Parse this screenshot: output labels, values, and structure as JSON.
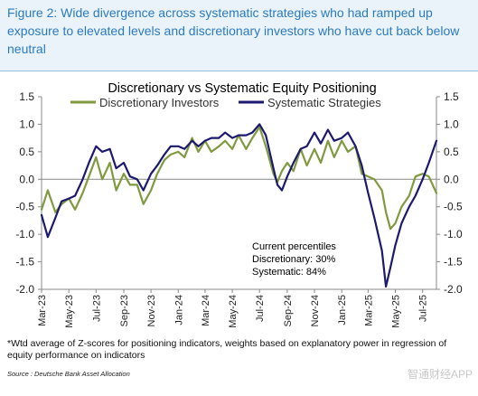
{
  "figure": {
    "title": "Figure 2: Wide divergence across systematic strategies who had ramped up exposure to elevated levels and discretionary investors who have cut back below neutral",
    "footnote": "*Wtd average of Z-scores for positioning indicators, weights based on explanatory power in regression of equity performance on indicators",
    "source": "Source : Deutsche Bank Asset Allocation",
    "watermark": "智通财经APP"
  },
  "chart_data": {
    "type": "line",
    "title": "Discretionary  vs Systematic Equity Positioning",
    "ylim": [
      -2.0,
      1.5
    ],
    "y_ticks": [
      "1.5",
      "1.0",
      "0.5",
      "0.0",
      "-0.5",
      "-1.0",
      "-1.5",
      "-2.0"
    ],
    "y_tick_values": [
      1.5,
      1.0,
      0.5,
      0.0,
      -0.5,
      -1.0,
      -1.5,
      -2.0
    ],
    "x_ticks": [
      "Mar-23",
      "May-23",
      "Jul-23",
      "Sep-23",
      "Nov-23",
      "Jan-24",
      "Mar-24",
      "May-24",
      "Jul-24",
      "Sep-24",
      "Nov-24",
      "Jan-25",
      "Mar-25",
      "May-25",
      "Jul-25"
    ],
    "x_start": "2023-03",
    "x_end": "2025-08",
    "legend_position": "top",
    "grid": false,
    "colors": {
      "discretionary": "#7f9a3f",
      "systematic": "#1c1a6e"
    },
    "annotation": [
      "Current percentiles",
      "Discretionary: 30%",
      "Systematic: 84%"
    ],
    "series": [
      {
        "name": "Discretionary Investors",
        "x": [
          "2023-03-01",
          "2023-03-15",
          "2023-04-01",
          "2023-04-15",
          "2023-05-01",
          "2023-05-15",
          "2023-06-01",
          "2023-06-15",
          "2023-07-01",
          "2023-07-15",
          "2023-08-01",
          "2023-08-15",
          "2023-09-01",
          "2023-09-15",
          "2023-10-01",
          "2023-10-15",
          "2023-11-01",
          "2023-11-15",
          "2023-12-01",
          "2023-12-15",
          "2024-01-01",
          "2024-01-15",
          "2024-02-01",
          "2024-02-15",
          "2024-03-01",
          "2024-03-15",
          "2024-04-01",
          "2024-04-15",
          "2024-05-01",
          "2024-05-15",
          "2024-06-01",
          "2024-06-15",
          "2024-07-01",
          "2024-07-15",
          "2024-08-01",
          "2024-08-10",
          "2024-08-20",
          "2024-09-01",
          "2024-09-15",
          "2024-10-01",
          "2024-10-15",
          "2024-11-01",
          "2024-11-15",
          "2024-12-01",
          "2024-12-15",
          "2025-01-01",
          "2025-01-15",
          "2025-02-01",
          "2025-02-15",
          "2025-03-01",
          "2025-03-15",
          "2025-04-01",
          "2025-04-10",
          "2025-04-20",
          "2025-05-01",
          "2025-05-15",
          "2025-06-01",
          "2025-06-15",
          "2025-07-01",
          "2025-07-15",
          "2025-08-01"
        ],
        "y": [
          -0.55,
          -0.2,
          -0.6,
          -0.45,
          -0.35,
          -0.55,
          -0.25,
          0.05,
          0.4,
          0.0,
          0.3,
          -0.2,
          0.1,
          -0.1,
          -0.1,
          -0.45,
          -0.2,
          0.1,
          0.35,
          0.45,
          0.5,
          0.4,
          0.75,
          0.5,
          0.7,
          0.5,
          0.6,
          0.7,
          0.55,
          0.8,
          0.55,
          0.75,
          0.95,
          0.6,
          0.1,
          -0.05,
          0.15,
          0.3,
          0.15,
          0.55,
          0.25,
          0.55,
          0.3,
          0.7,
          0.4,
          0.7,
          0.5,
          0.6,
          0.1,
          0.05,
          0.0,
          -0.2,
          -0.6,
          -0.9,
          -0.8,
          -0.5,
          -0.3,
          0.05,
          0.1,
          0.05,
          -0.25
        ]
      },
      {
        "name": "Systematic Strategies",
        "x": [
          "2023-03-01",
          "2023-03-15",
          "2023-04-01",
          "2023-04-15",
          "2023-05-01",
          "2023-05-15",
          "2023-06-01",
          "2023-06-15",
          "2023-07-01",
          "2023-07-15",
          "2023-08-01",
          "2023-08-15",
          "2023-09-01",
          "2023-09-15",
          "2023-10-01",
          "2023-10-15",
          "2023-11-01",
          "2023-11-15",
          "2023-12-01",
          "2023-12-15",
          "2024-01-01",
          "2024-01-15",
          "2024-02-01",
          "2024-02-15",
          "2024-03-01",
          "2024-03-15",
          "2024-04-01",
          "2024-04-15",
          "2024-05-01",
          "2024-05-15",
          "2024-06-01",
          "2024-06-15",
          "2024-07-01",
          "2024-07-15",
          "2024-08-01",
          "2024-08-10",
          "2024-08-20",
          "2024-09-01",
          "2024-09-15",
          "2024-10-01",
          "2024-10-15",
          "2024-11-01",
          "2024-11-15",
          "2024-12-01",
          "2024-12-15",
          "2025-01-01",
          "2025-01-15",
          "2025-02-01",
          "2025-02-15",
          "2025-03-01",
          "2025-03-15",
          "2025-04-01",
          "2025-04-10",
          "2025-04-20",
          "2025-05-01",
          "2025-05-15",
          "2025-06-01",
          "2025-06-15",
          "2025-07-01",
          "2025-07-15",
          "2025-08-01"
        ],
        "y": [
          -0.65,
          -1.05,
          -0.7,
          -0.4,
          -0.35,
          -0.3,
          0.0,
          0.3,
          0.6,
          0.5,
          0.55,
          0.2,
          0.3,
          0.05,
          0.0,
          -0.2,
          0.1,
          0.25,
          0.45,
          0.6,
          0.6,
          0.55,
          0.7,
          0.6,
          0.7,
          0.75,
          0.75,
          0.85,
          0.75,
          0.8,
          0.8,
          0.85,
          1.0,
          0.8,
          0.2,
          -0.1,
          -0.2,
          0.05,
          0.3,
          0.55,
          0.6,
          0.85,
          0.65,
          0.9,
          0.7,
          0.75,
          0.85,
          0.6,
          0.25,
          -0.25,
          -0.7,
          -1.3,
          -1.95,
          -1.6,
          -1.2,
          -0.8,
          -0.5,
          -0.3,
          0.0,
          0.3,
          0.7
        ]
      }
    ]
  }
}
